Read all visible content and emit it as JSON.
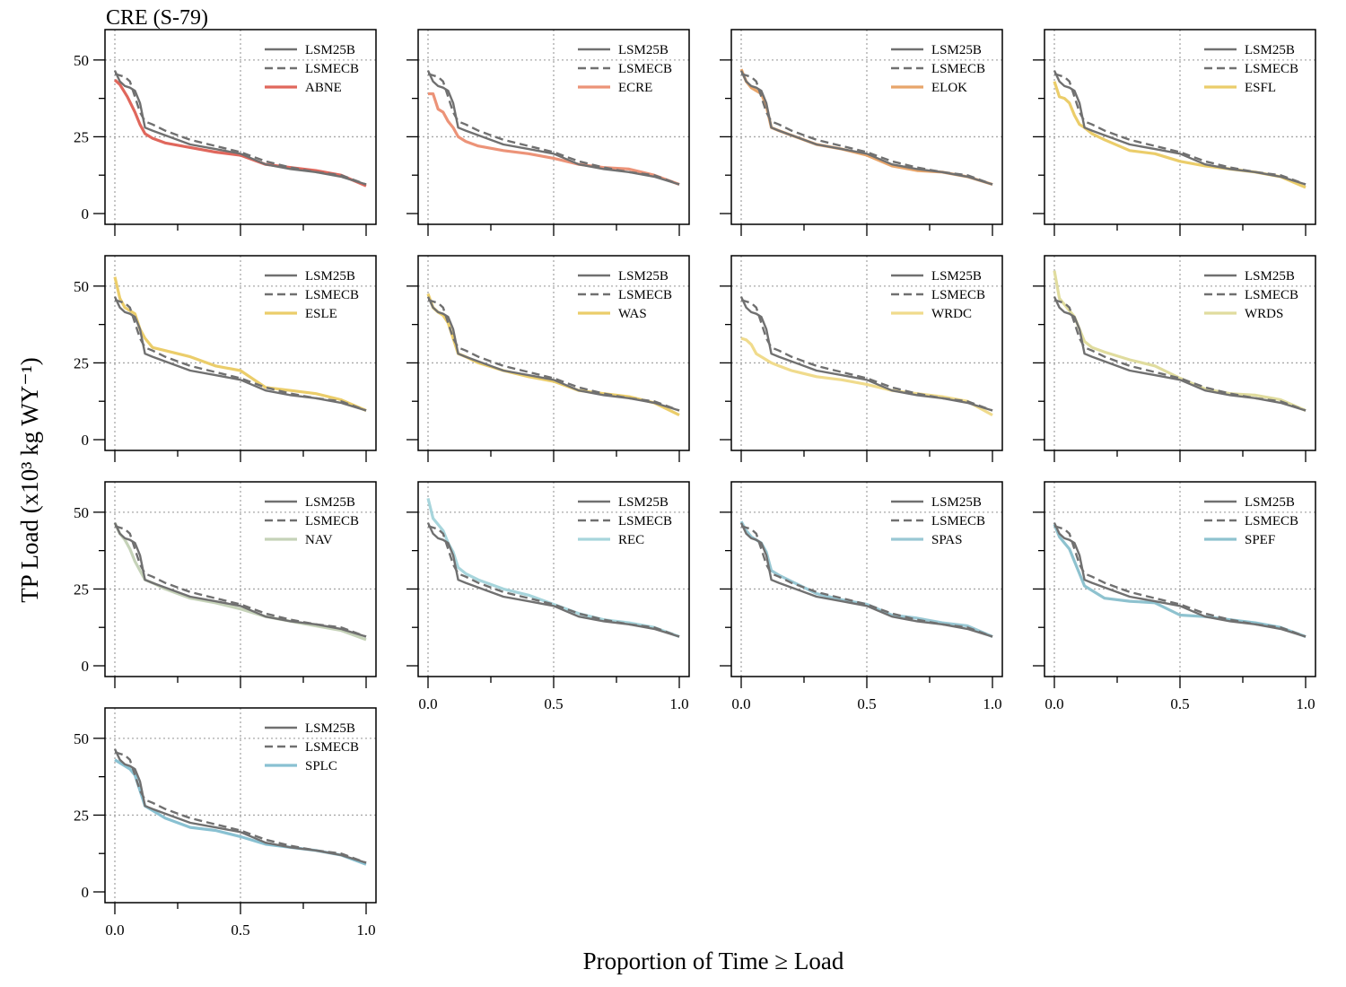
{
  "figure": {
    "title": "CRE (S-79)",
    "ylabel": "TP Load (x10³ kg WY⁻¹)",
    "xlabel": "Proportion of Time ≥ Load"
  },
  "reference_series": [
    {
      "name": "LSM25B",
      "color": "#707070",
      "dash": "solid"
    },
    {
      "name": "LSMECB",
      "color": "#707070",
      "dash": "dashed"
    }
  ],
  "chart_data": {
    "type": "line",
    "xlim": [
      0,
      1
    ],
    "ylim": [
      0,
      50
    ],
    "xticks": [
      "0.0",
      "0.5",
      "1.0"
    ],
    "yticks": [
      "0",
      "25",
      "50"
    ],
    "grid": true,
    "legend_position": "top-right",
    "baseline_curves": {
      "LSM25B": {
        "x": [
          0,
          0.02,
          0.04,
          0.06,
          0.08,
          0.1,
          0.12,
          0.15,
          0.2,
          0.3,
          0.4,
          0.5,
          0.6,
          0.7,
          0.8,
          0.9,
          1.0
        ],
        "y": [
          46.5,
          43,
          41.5,
          41,
          40,
          36,
          28,
          27,
          25.5,
          22.5,
          21,
          19.5,
          16,
          14.5,
          13.5,
          12,
          9.5
        ]
      },
      "LSMECB": {
        "x": [
          0,
          0.02,
          0.04,
          0.06,
          0.08,
          0.1,
          0.12,
          0.15,
          0.2,
          0.3,
          0.4,
          0.5,
          0.6,
          0.7,
          0.8,
          0.9,
          1.0
        ],
        "y": [
          45.5,
          45,
          44.5,
          43,
          38,
          33,
          30,
          29,
          27,
          24,
          22,
          20,
          17,
          15,
          13.5,
          12.5,
          9.5
        ]
      }
    },
    "panels": [
      {
        "name": "ABNE",
        "color": "#e0675c",
        "x": [
          0,
          0.02,
          0.05,
          0.08,
          0.1,
          0.12,
          0.15,
          0.2,
          0.3,
          0.4,
          0.5,
          0.6,
          0.7,
          0.8,
          0.9,
          1.0
        ],
        "y": [
          43.5,
          42,
          38,
          33,
          29,
          26,
          24.5,
          23,
          21.5,
          20,
          19,
          16,
          15,
          14,
          12.5,
          9
        ]
      },
      {
        "name": "ECRE",
        "color": "#ec9378",
        "x": [
          0,
          0.02,
          0.04,
          0.06,
          0.08,
          0.1,
          0.12,
          0.15,
          0.2,
          0.3,
          0.4,
          0.5,
          0.6,
          0.7,
          0.8,
          0.9,
          1.0
        ],
        "y": [
          39,
          39,
          34,
          33,
          30,
          28,
          25,
          23.5,
          22,
          20.5,
          19.5,
          18,
          16,
          15,
          14.5,
          12.5,
          9.5
        ]
      },
      {
        "name": "ELOK",
        "color": "#e8a56a",
        "x": [
          0,
          0.02,
          0.04,
          0.06,
          0.08,
          0.1,
          0.12,
          0.15,
          0.2,
          0.3,
          0.4,
          0.5,
          0.6,
          0.7,
          0.8,
          0.9,
          1.0
        ],
        "y": [
          47,
          43,
          41,
          40,
          39,
          35,
          28,
          27,
          25.5,
          22.5,
          21,
          19,
          15.5,
          14,
          13.5,
          12,
          9.5
        ]
      },
      {
        "name": "ESFL",
        "color": "#ebcd6a",
        "x": [
          0,
          0.02,
          0.04,
          0.06,
          0.08,
          0.1,
          0.12,
          0.15,
          0.2,
          0.3,
          0.4,
          0.5,
          0.6,
          0.7,
          0.8,
          0.9,
          1.0
        ],
        "y": [
          43,
          38,
          37.5,
          36,
          32,
          29,
          28,
          26,
          24,
          20.5,
          19.5,
          17,
          15.5,
          14.5,
          13.5,
          12,
          8.5
        ]
      },
      {
        "name": "ESLE",
        "color": "#ebcd6a",
        "x": [
          0,
          0.02,
          0.04,
          0.06,
          0.08,
          0.1,
          0.12,
          0.15,
          0.2,
          0.3,
          0.4,
          0.5,
          0.6,
          0.7,
          0.8,
          0.9,
          1.0
        ],
        "y": [
          53,
          46,
          43,
          42,
          41,
          36,
          33,
          30,
          29,
          27,
          24,
          22.5,
          17,
          16,
          15,
          13,
          9.5
        ]
      },
      {
        "name": "WAS",
        "color": "#ebcd6a",
        "x": [
          0,
          0.02,
          0.04,
          0.06,
          0.08,
          0.1,
          0.12,
          0.15,
          0.2,
          0.3,
          0.4,
          0.5,
          0.6,
          0.7,
          0.8,
          0.9,
          1.0
        ],
        "y": [
          47.5,
          43,
          41.5,
          40.5,
          38,
          33,
          28,
          27,
          25,
          22.5,
          20.5,
          19,
          16,
          15,
          14,
          12,
          8
        ]
      },
      {
        "name": "WRDC",
        "color": "#f0db8c",
        "x": [
          0,
          0.02,
          0.04,
          0.06,
          0.08,
          0.1,
          0.12,
          0.15,
          0.2,
          0.3,
          0.4,
          0.5,
          0.6,
          0.7,
          0.8,
          0.9,
          1.0
        ],
        "y": [
          33,
          32.5,
          31,
          28,
          27,
          26,
          25,
          24,
          22.5,
          20.5,
          19.5,
          18,
          16,
          15,
          14,
          12.5,
          8
        ]
      },
      {
        "name": "WRDS",
        "color": "#e0dc9e",
        "x": [
          0,
          0.02,
          0.04,
          0.06,
          0.08,
          0.1,
          0.12,
          0.15,
          0.2,
          0.3,
          0.4,
          0.5,
          0.6,
          0.7,
          0.8,
          0.9,
          1.0
        ],
        "y": [
          55,
          46,
          44,
          42,
          40,
          36,
          32,
          30,
          28.5,
          26,
          24,
          20,
          16.5,
          15,
          14.5,
          13,
          9.5
        ]
      },
      {
        "name": "NAV",
        "color": "#c5d2b8",
        "x": [
          0,
          0.02,
          0.04,
          0.06,
          0.08,
          0.1,
          0.12,
          0.15,
          0.2,
          0.3,
          0.4,
          0.5,
          0.6,
          0.7,
          0.8,
          0.9,
          1.0
        ],
        "y": [
          46.5,
          43,
          41,
          38,
          34,
          31,
          28,
          27,
          25,
          22,
          20.5,
          18.5,
          16,
          14.5,
          13,
          11.5,
          8.5
        ]
      },
      {
        "name": "REC",
        "color": "#a7d5dc",
        "x": [
          0,
          0.02,
          0.04,
          0.06,
          0.08,
          0.1,
          0.12,
          0.15,
          0.2,
          0.3,
          0.4,
          0.5,
          0.6,
          0.7,
          0.8,
          0.9,
          1.0
        ],
        "y": [
          54.5,
          48,
          46,
          44,
          40,
          37,
          32,
          30,
          28,
          25,
          23,
          20,
          17,
          15,
          14,
          12.5,
          9.5
        ]
      },
      {
        "name": "SPAS",
        "color": "#99c8d4",
        "x": [
          0,
          0.02,
          0.04,
          0.06,
          0.08,
          0.1,
          0.12,
          0.15,
          0.2,
          0.3,
          0.4,
          0.5,
          0.6,
          0.7,
          0.8,
          0.9,
          1.0
        ],
        "y": [
          47,
          44,
          42,
          41,
          40,
          37,
          31,
          29.5,
          27.5,
          23.5,
          21.5,
          20,
          16.5,
          15.5,
          14,
          13,
          9.5
        ]
      },
      {
        "name": "SPEF",
        "color": "#8ec2cf",
        "x": [
          0,
          0.02,
          0.04,
          0.06,
          0.08,
          0.1,
          0.12,
          0.15,
          0.2,
          0.3,
          0.4,
          0.5,
          0.6,
          0.7,
          0.8,
          0.9,
          1.0
        ],
        "y": [
          46,
          42,
          40,
          38,
          34,
          30,
          26,
          24.5,
          22,
          21,
          20.5,
          16.5,
          16,
          15,
          14,
          12.5,
          9.5
        ]
      },
      {
        "name": "SPLC",
        "color": "#89c1d2",
        "x": [
          0,
          0.02,
          0.04,
          0.06,
          0.08,
          0.1,
          0.12,
          0.15,
          0.2,
          0.3,
          0.4,
          0.5,
          0.6,
          0.7,
          0.8,
          0.9,
          1.0
        ],
        "y": [
          43,
          42,
          41,
          40,
          38,
          33,
          28,
          26.5,
          24,
          21,
          20,
          18,
          15.5,
          14.5,
          13.5,
          12,
          9
        ]
      }
    ]
  }
}
